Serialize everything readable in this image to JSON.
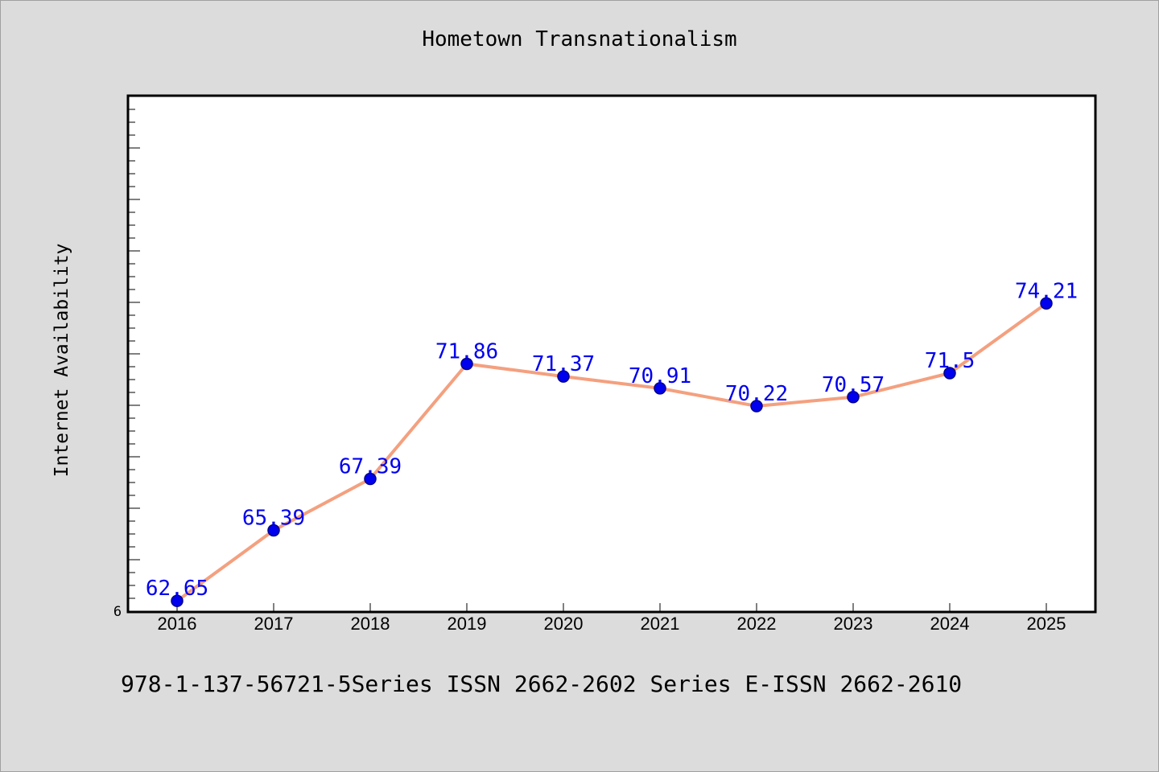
{
  "header": {
    "title": "Hometown Transnationalism"
  },
  "footer": {
    "note": "978-1-137-56721-5Series ISSN 2662-2602 Series E-ISSN 2662-2610"
  },
  "chart_data": {
    "type": "line",
    "title": "Hometown Transnationalism",
    "xlabel": "",
    "ylabel": "Internet Availability",
    "categories": [
      "2016",
      "2017",
      "2018",
      "2019",
      "2020",
      "2021",
      "2022",
      "2023",
      "2024",
      "2025"
    ],
    "series": [
      {
        "name": "",
        "values": [
          62.65,
          65.39,
          67.39,
          71.86,
          71.37,
          70.91,
          70.22,
          70.57,
          71.5,
          74.21
        ],
        "data_labels": [
          "62.65",
          "65.39",
          "67.39",
          "71.86",
          "71.37",
          "70.91",
          "70.22",
          "70.57",
          "71.5",
          "74.21"
        ]
      }
    ],
    "ylim": [
      62.25,
      82.25
    ],
    "y_tick_labels": [
      "6"
    ],
    "grid": false,
    "legend": "none",
    "colors": {
      "line": "#f4a07f",
      "marker_fill": "#0000ee",
      "marker_edge": "#00008b",
      "label": "#0000ee",
      "plot_bg": "#ffffff",
      "page_bg": "#dcdcdc"
    }
  }
}
